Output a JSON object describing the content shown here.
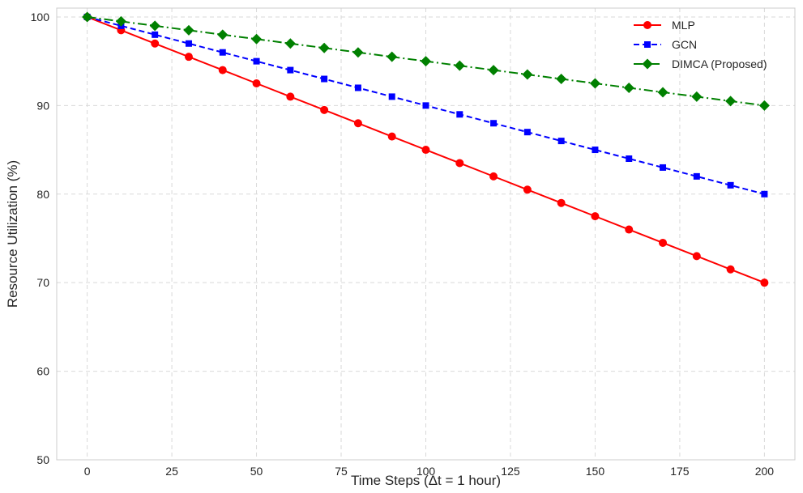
{
  "chart_data": {
    "type": "line",
    "title": "",
    "xlabel": "Time Steps (Δt = 1 hour)",
    "ylabel": "Resource Utilization (%)",
    "xlim": [
      -9,
      209
    ],
    "ylim": [
      50,
      101
    ],
    "xticks": [
      0,
      25,
      50,
      75,
      100,
      125,
      150,
      175,
      200
    ],
    "yticks": [
      50,
      60,
      70,
      80,
      90,
      100
    ],
    "grid": true,
    "legend_position": "top-right",
    "x": [
      0,
      10,
      20,
      30,
      40,
      50,
      60,
      70,
      80,
      90,
      100,
      110,
      120,
      130,
      140,
      150,
      160,
      170,
      180,
      190,
      200
    ],
    "series": [
      {
        "name": "MLP",
        "color": "#ff0000",
        "marker": "circle",
        "linestyle": "solid",
        "values": [
          100,
          98.5,
          97,
          95.5,
          94,
          92.5,
          91,
          89.5,
          88,
          86.5,
          85,
          83.5,
          82,
          80.5,
          79,
          77.5,
          76,
          74.5,
          73,
          71.5,
          70
        ]
      },
      {
        "name": "GCN",
        "color": "#0000ff",
        "marker": "square",
        "linestyle": "dashed",
        "values": [
          100,
          99,
          98,
          97,
          96,
          95,
          94,
          93,
          92,
          91,
          90,
          89,
          88,
          87,
          86,
          85,
          84,
          83,
          82,
          81,
          80
        ]
      },
      {
        "name": "DIMCA (Proposed)",
        "color": "#008000",
        "marker": "diamond",
        "linestyle": "dashdot",
        "values": [
          100,
          99.5,
          99,
          98.5,
          98,
          97.5,
          97,
          96.5,
          96,
          95.5,
          95,
          94.5,
          94,
          93.5,
          93,
          92.5,
          92,
          91.5,
          91,
          90.5,
          90
        ]
      }
    ]
  }
}
